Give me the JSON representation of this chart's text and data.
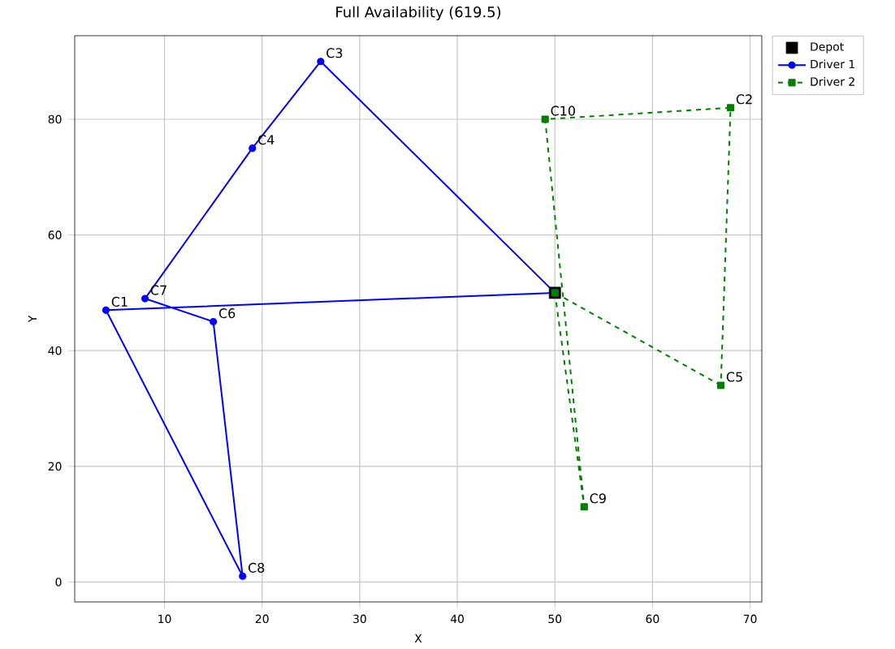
{
  "chart_data": {
    "type": "line",
    "title": "Full Availability (619.5)",
    "xlabel": "X",
    "ylabel": "Y",
    "xlim": [
      0.8,
      71.2
    ],
    "ylim": [
      -3.45,
      94.45
    ],
    "xticks": [
      10,
      20,
      30,
      40,
      50,
      60,
      70
    ],
    "yticks": [
      0,
      20,
      40,
      60,
      80
    ],
    "grid": true,
    "legend": "top right",
    "series": [
      {
        "name": "Depot",
        "type": "scatter",
        "marker": "square",
        "color": "#000000",
        "x": [
          50
        ],
        "values": [
          50
        ]
      },
      {
        "name": "Driver 1",
        "marker": "circle",
        "line_style": "solid",
        "color": "#0000ff",
        "x": [
          50,
          4,
          18,
          15,
          8,
          19,
          26
        ],
        "values": [
          50,
          47,
          1,
          45,
          49,
          75,
          90
        ]
      },
      {
        "name": "Driver 2",
        "marker": "square",
        "line_style": "dashed",
        "color": "#008000",
        "x": [
          50,
          53,
          49,
          68,
          67
        ],
        "values": [
          50,
          13,
          80,
          82,
          34
        ]
      },
      {
        "marker": "none",
        "line_style": "solid",
        "color": "#0000ff",
        "x": [
          26,
          50
        ],
        "values": [
          90,
          50
        ]
      },
      {
        "marker": "none",
        "line_style": "dashed",
        "color": "#008000",
        "x": [
          67,
          50
        ],
        "values": [
          34,
          50
        ]
      }
    ],
    "annotations": [
      {
        "text": "C1",
        "x": 4,
        "y": 47
      },
      {
        "text": "C2",
        "x": 68,
        "y": 82
      },
      {
        "text": "C3",
        "x": 26,
        "y": 90
      },
      {
        "text": "C4",
        "x": 19,
        "y": 75
      },
      {
        "text": "C5",
        "x": 67,
        "y": 34
      },
      {
        "text": "C6",
        "x": 15,
        "y": 45
      },
      {
        "text": "C7",
        "x": 8,
        "y": 49
      },
      {
        "text": "C8",
        "x": 18,
        "y": 1
      },
      {
        "text": "C9",
        "x": 53,
        "y": 13
      },
      {
        "text": "C10",
        "x": 49,
        "y": 80
      }
    ]
  }
}
